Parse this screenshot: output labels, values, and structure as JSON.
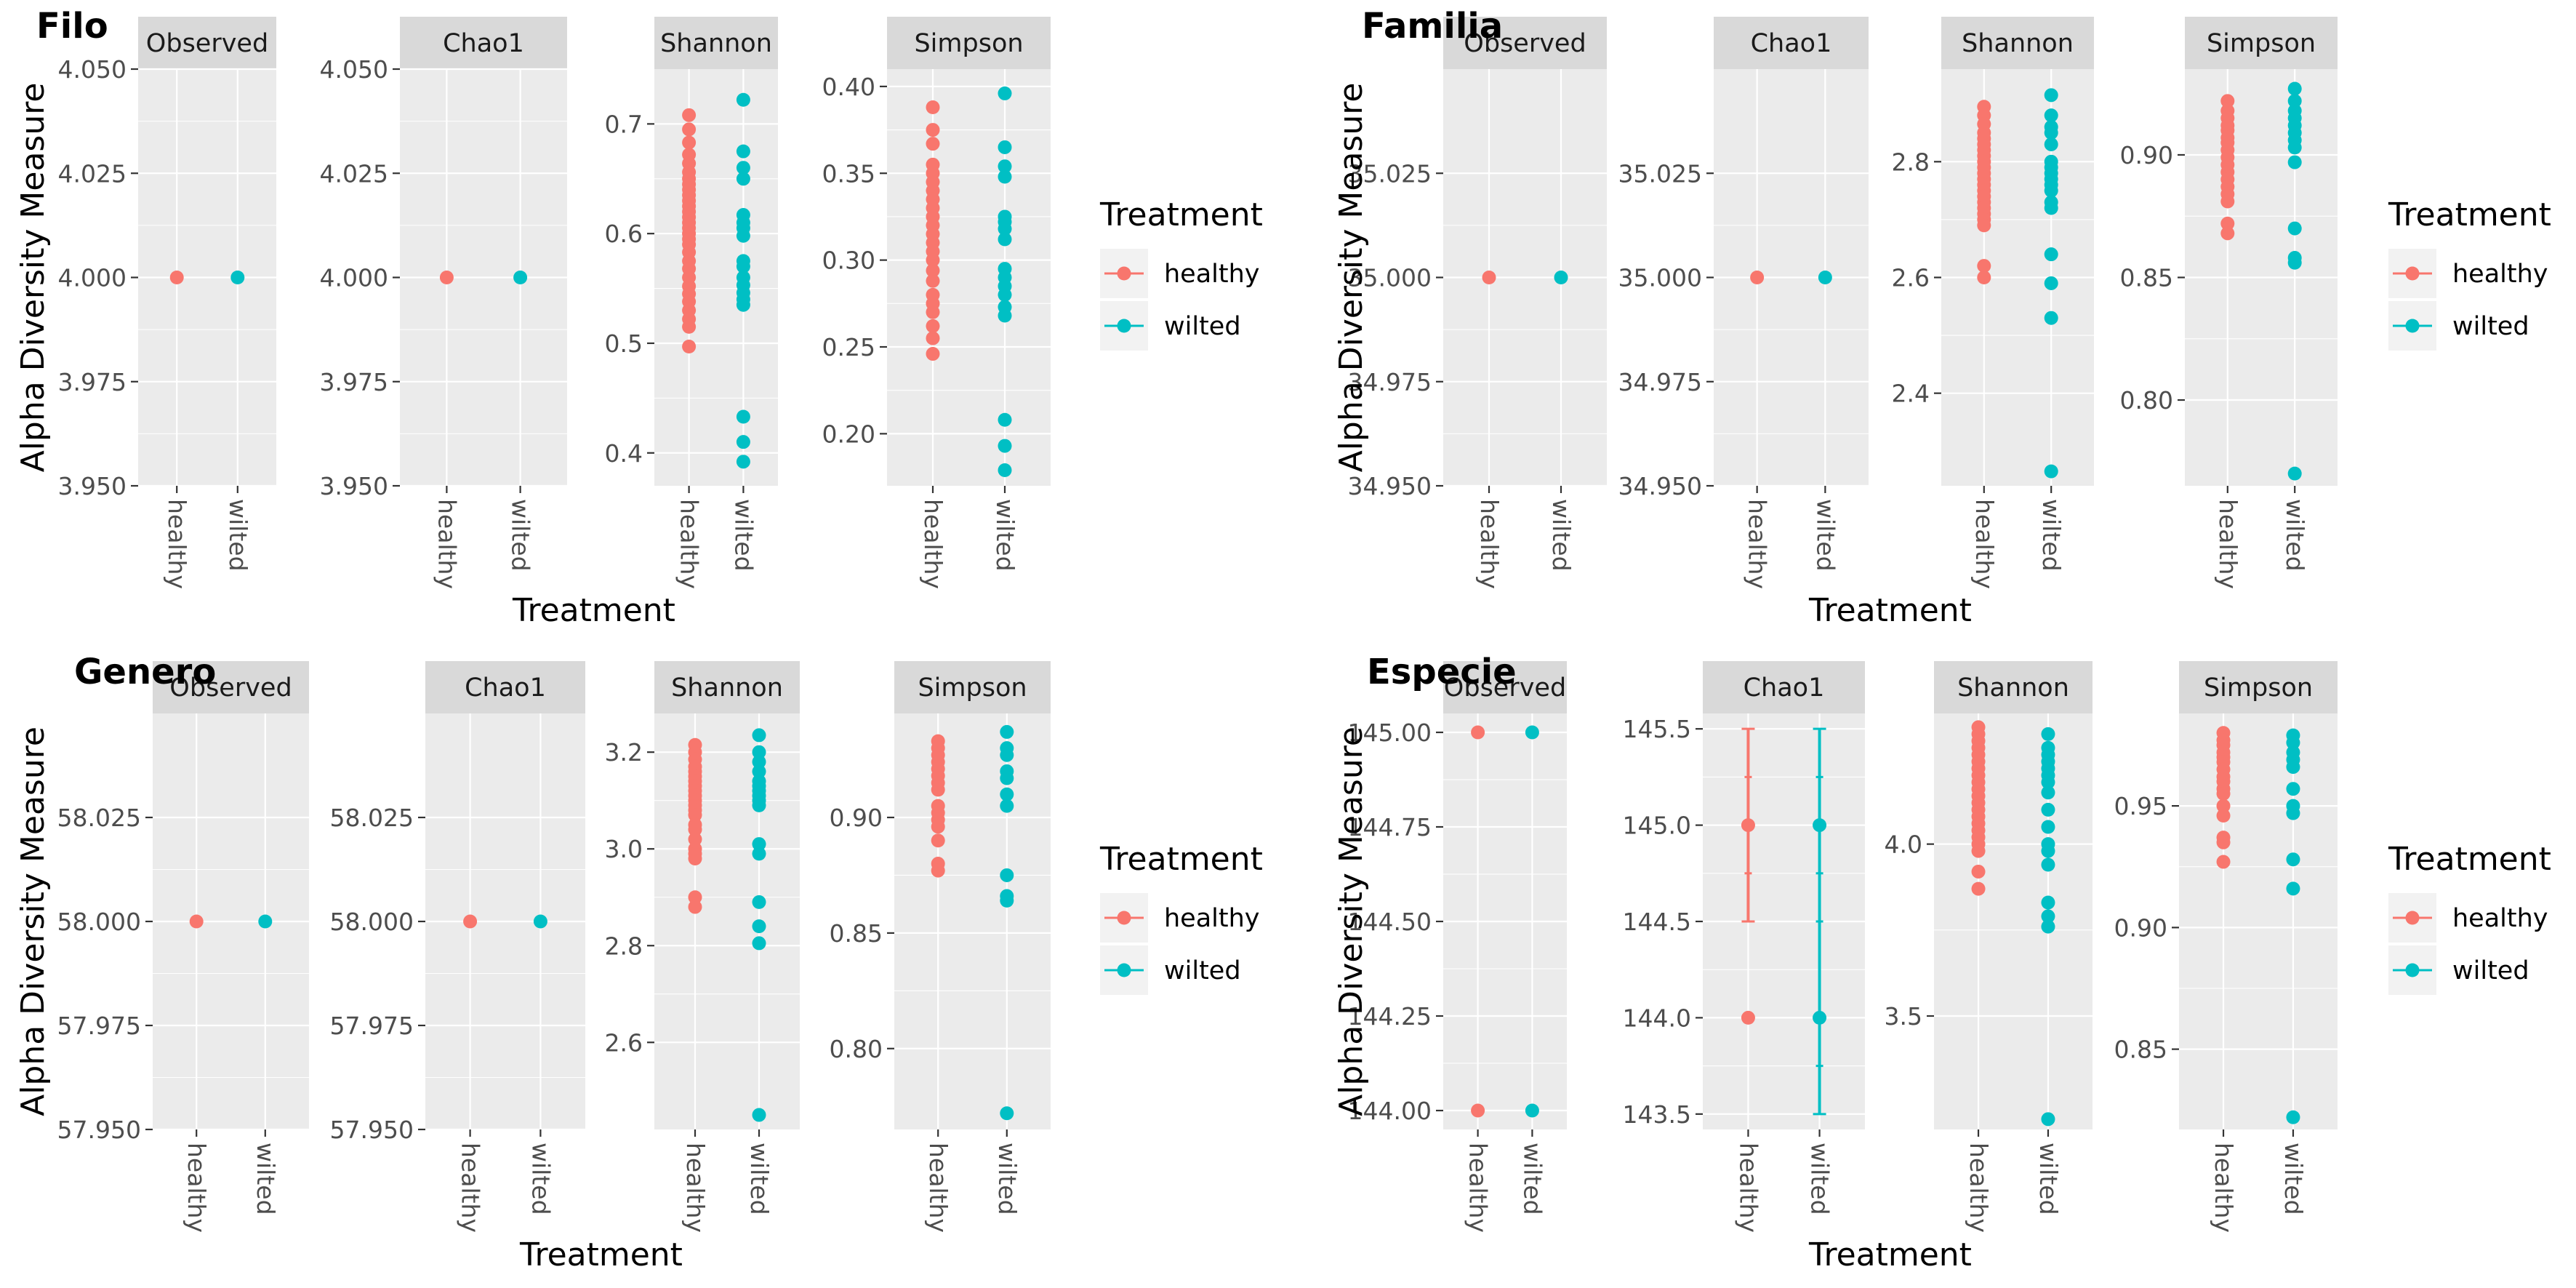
{
  "colors": {
    "healthy": "#F8766D",
    "wilted": "#00BFC4"
  },
  "chart_data": [
    {
      "type": "scatter",
      "title": "Filo",
      "xlabel": "Treatment",
      "ylabel": "Alpha Diversity Measure",
      "categories": [
        "healthy",
        "wilted"
      ],
      "legend": {
        "title": "Treatment",
        "entries": [
          "healthy",
          "wilted"
        ],
        "placement": "right"
      },
      "facets": [
        {
          "name": "Observed",
          "ylim": [
            3.95,
            4.05
          ],
          "yticks": [
            3.95,
            3.975,
            4.0,
            4.025,
            4.05
          ],
          "ytick_labels": [
            "3.950",
            "3.975",
            "4.000",
            "4.025",
            "4.050"
          ],
          "series": [
            {
              "name": "healthy",
              "values": [
                4
              ]
            },
            {
              "name": "wilted",
              "values": [
                4
              ]
            }
          ]
        },
        {
          "name": "Chao1",
          "ylim": [
            3.95,
            4.05
          ],
          "yticks": [
            3.95,
            3.975,
            4.0,
            4.025,
            4.05
          ],
          "ytick_labels": [
            "3.950",
            "3.975",
            "4.000",
            "4.025",
            "4.050"
          ],
          "series": [
            {
              "name": "healthy",
              "values": [
                4
              ]
            },
            {
              "name": "wilted",
              "values": [
                4
              ]
            }
          ]
        },
        {
          "name": "Shannon",
          "ylim": [
            0.37,
            0.75
          ],
          "yticks": [
            0.4,
            0.5,
            0.6,
            0.7
          ],
          "ytick_labels": [
            "0.4",
            "0.5",
            "0.6",
            "0.7"
          ],
          "series": [
            {
              "name": "healthy",
              "values": [
                0.708,
                0.695,
                0.683,
                0.672,
                0.664,
                0.656,
                0.65,
                0.645,
                0.64,
                0.635,
                0.63,
                0.625,
                0.62,
                0.615,
                0.61,
                0.605,
                0.6,
                0.595,
                0.59,
                0.583,
                0.575,
                0.568,
                0.56,
                0.552,
                0.545,
                0.538,
                0.53,
                0.522,
                0.515,
                0.497
              ]
            },
            {
              "name": "wilted",
              "values": [
                0.722,
                0.675,
                0.66,
                0.65,
                0.617,
                0.61,
                0.605,
                0.598,
                0.575,
                0.57,
                0.56,
                0.553,
                0.546,
                0.54,
                0.535,
                0.433,
                0.41,
                0.392
              ]
            }
          ]
        },
        {
          "name": "Simpson",
          "ylim": [
            0.17,
            0.41
          ],
          "yticks": [
            0.2,
            0.25,
            0.3,
            0.35,
            0.4
          ],
          "ytick_labels": [
            "0.20",
            "0.25",
            "0.30",
            "0.35",
            "0.40"
          ],
          "series": [
            {
              "name": "healthy",
              "values": [
                0.388,
                0.375,
                0.367,
                0.355,
                0.35,
                0.345,
                0.34,
                0.335,
                0.33,
                0.325,
                0.32,
                0.315,
                0.31,
                0.305,
                0.3,
                0.294,
                0.288,
                0.28,
                0.275,
                0.27,
                0.262,
                0.255,
                0.246
              ]
            },
            {
              "name": "wilted",
              "values": [
                0.396,
                0.365,
                0.354,
                0.348,
                0.325,
                0.322,
                0.318,
                0.312,
                0.295,
                0.29,
                0.285,
                0.28,
                0.273,
                0.268,
                0.208,
                0.193,
                0.179
              ]
            }
          ]
        }
      ]
    },
    {
      "type": "scatter",
      "title": "Familia",
      "xlabel": "Treatment",
      "ylabel": "Alpha Diversity Measure",
      "categories": [
        "healthy",
        "wilted"
      ],
      "legend": {
        "title": "Treatment",
        "entries": [
          "healthy",
          "wilted"
        ],
        "placement": "right"
      },
      "facets": [
        {
          "name": "Observed",
          "ylim": [
            34.95,
            35.05
          ],
          "yticks": [
            34.95,
            34.975,
            35.0,
            35.025
          ],
          "ytick_labels": [
            "34.950",
            "34.975",
            "35.000",
            "35.025"
          ],
          "series": [
            {
              "name": "healthy",
              "values": [
                35
              ]
            },
            {
              "name": "wilted",
              "values": [
                35
              ]
            }
          ]
        },
        {
          "name": "Chao1",
          "ylim": [
            34.95,
            35.05
          ],
          "yticks": [
            34.95,
            34.975,
            35.0,
            35.025
          ],
          "ytick_labels": [
            "34.950",
            "34.975",
            "35.000",
            "35.025"
          ],
          "series": [
            {
              "name": "healthy",
              "values": [
                35
              ]
            },
            {
              "name": "wilted",
              "values": [
                35
              ]
            }
          ]
        },
        {
          "name": "Shannon",
          "ylim": [
            2.24,
            2.96
          ],
          "yticks": [
            2.4,
            2.6,
            2.8
          ],
          "ytick_labels": [
            "2.4",
            "2.6",
            "2.8"
          ],
          "series": [
            {
              "name": "healthy",
              "values": [
                2.895,
                2.88,
                2.865,
                2.85,
                2.84,
                2.83,
                2.82,
                2.81,
                2.8,
                2.79,
                2.78,
                2.77,
                2.76,
                2.75,
                2.74,
                2.73,
                2.72,
                2.71,
                2.7,
                2.69,
                2.62,
                2.6
              ]
            },
            {
              "name": "wilted",
              "values": [
                2.915,
                2.88,
                2.86,
                2.85,
                2.83,
                2.8,
                2.79,
                2.78,
                2.77,
                2.76,
                2.75,
                2.73,
                2.72,
                2.64,
                2.59,
                2.53,
                2.265
              ]
            }
          ]
        },
        {
          "name": "Simpson",
          "ylim": [
            0.765,
            0.935
          ],
          "yticks": [
            0.8,
            0.85,
            0.9
          ],
          "ytick_labels": [
            "0.80",
            "0.85",
            "0.90"
          ],
          "series": [
            {
              "name": "healthy",
              "values": [
                0.922,
                0.918,
                0.915,
                0.912,
                0.91,
                0.907,
                0.905,
                0.902,
                0.899,
                0.896,
                0.893,
                0.89,
                0.887,
                0.884,
                0.881,
                0.872,
                0.868
              ]
            },
            {
              "name": "wilted",
              "values": [
                0.927,
                0.922,
                0.918,
                0.915,
                0.912,
                0.909,
                0.906,
                0.903,
                0.897,
                0.87,
                0.858,
                0.856,
                0.77
              ]
            }
          ]
        }
      ]
    },
    {
      "type": "scatter",
      "title": "Genero",
      "xlabel": "Treatment",
      "ylabel": "Alpha Diversity Measure",
      "categories": [
        "healthy",
        "wilted"
      ],
      "legend": {
        "title": "Treatment",
        "entries": [
          "healthy",
          "wilted"
        ],
        "placement": "right"
      },
      "facets": [
        {
          "name": "Observed",
          "ylim": [
            57.95,
            58.05
          ],
          "yticks": [
            57.95,
            57.975,
            58.0,
            58.025
          ],
          "ytick_labels": [
            "57.950",
            "57.975",
            "58.000",
            "58.025"
          ],
          "series": [
            {
              "name": "healthy",
              "values": [
                58
              ]
            },
            {
              "name": "wilted",
              "values": [
                58
              ]
            }
          ]
        },
        {
          "name": "Chao1",
          "ylim": [
            57.95,
            58.05
          ],
          "yticks": [
            57.95,
            57.975,
            58.0,
            58.025
          ],
          "ytick_labels": [
            "57.950",
            "57.975",
            "58.000",
            "58.025"
          ],
          "series": [
            {
              "name": "healthy",
              "values": [
                58
              ]
            },
            {
              "name": "wilted",
              "values": [
                58
              ]
            }
          ]
        },
        {
          "name": "Shannon",
          "ylim": [
            2.42,
            3.28
          ],
          "yticks": [
            2.6,
            2.8,
            3.0,
            3.2
          ],
          "ytick_labels": [
            "2.6",
            "2.8",
            "3.0",
            "3.2"
          ],
          "series": [
            {
              "name": "healthy",
              "values": [
                3.215,
                3.2,
                3.185,
                3.17,
                3.16,
                3.15,
                3.14,
                3.13,
                3.12,
                3.11,
                3.1,
                3.09,
                3.08,
                3.07,
                3.05,
                3.04,
                3.02,
                3.0,
                2.99,
                2.98,
                2.9,
                2.88
              ]
            },
            {
              "name": "wilted",
              "values": [
                3.235,
                3.2,
                3.18,
                3.16,
                3.14,
                3.13,
                3.12,
                3.11,
                3.1,
                3.09,
                3.01,
                2.99,
                2.89,
                2.84,
                2.805,
                2.45
              ]
            }
          ]
        },
        {
          "name": "Simpson",
          "ylim": [
            0.765,
            0.945
          ],
          "yticks": [
            0.8,
            0.85,
            0.9
          ],
          "ytick_labels": [
            "0.80",
            "0.85",
            "0.90"
          ],
          "series": [
            {
              "name": "healthy",
              "values": [
                0.933,
                0.93,
                0.927,
                0.924,
                0.921,
                0.918,
                0.915,
                0.912,
                0.905,
                0.902,
                0.899,
                0.896,
                0.89,
                0.88,
                0.877
              ]
            },
            {
              "name": "wilted",
              "values": [
                0.937,
                0.93,
                0.927,
                0.92,
                0.917,
                0.91,
                0.905,
                0.875,
                0.866,
                0.864,
                0.772
              ]
            }
          ]
        }
      ]
    },
    {
      "type": "scatter",
      "title": "Especie",
      "xlabel": "Treatment",
      "ylabel": "Alpha Diversity Measure",
      "categories": [
        "healthy",
        "wilted"
      ],
      "legend": {
        "title": "Treatment",
        "entries": [
          "healthy",
          "wilted"
        ],
        "placement": "right"
      },
      "facets": [
        {
          "name": "Observed",
          "ylim": [
            143.95,
            145.05
          ],
          "yticks": [
            144.0,
            144.25,
            144.5,
            144.75,
            145.0
          ],
          "ytick_labels": [
            "144.00",
            "144.25",
            "144.50",
            "144.75",
            "145.00"
          ],
          "series": [
            {
              "name": "healthy",
              "values": [
                145,
                144
              ]
            },
            {
              "name": "wilted",
              "values": [
                145,
                144
              ]
            }
          ]
        },
        {
          "name": "Chao1",
          "ylim": [
            143.42,
            145.58
          ],
          "yticks": [
            143.5,
            144.0,
            144.5,
            145.0,
            145.5
          ],
          "ytick_labels": [
            "143.5",
            "144.0",
            "144.5",
            "145.0",
            "145.5"
          ],
          "error_bars": [
            {
              "name": "healthy",
              "low": 144.5,
              "high": 145.5,
              "ticks": [
                145.25,
                144.75
              ]
            },
            {
              "name": "wilted",
              "low": 143.5,
              "high": 145.5,
              "ticks": [
                145.25,
                144.75,
                144.5,
                143.75
              ]
            }
          ],
          "series": [
            {
              "name": "healthy",
              "values": [
                145,
                144
              ]
            },
            {
              "name": "wilted",
              "values": [
                145,
                144
              ]
            }
          ]
        },
        {
          "name": "Shannon",
          "ylim": [
            3.17,
            4.38
          ],
          "yticks": [
            3.5,
            4.0
          ],
          "ytick_labels": [
            "3.5",
            "4.0"
          ],
          "series": [
            {
              "name": "healthy",
              "values": [
                4.34,
                4.32,
                4.3,
                4.28,
                4.26,
                4.24,
                4.22,
                4.2,
                4.18,
                4.16,
                4.14,
                4.12,
                4.1,
                4.08,
                4.06,
                4.04,
                4.02,
                4.0,
                3.98,
                3.92,
                3.87
              ]
            },
            {
              "name": "wilted",
              "values": [
                4.32,
                4.28,
                4.26,
                4.24,
                4.22,
                4.2,
                4.18,
                4.15,
                4.1,
                4.05,
                4.0,
                3.98,
                3.94,
                3.83,
                3.79,
                3.76,
                3.2
              ]
            }
          ]
        },
        {
          "name": "Simpson",
          "ylim": [
            0.817,
            0.988
          ],
          "yticks": [
            0.85,
            0.9,
            0.95
          ],
          "ytick_labels": [
            "0.85",
            "0.90",
            "0.95"
          ],
          "series": [
            {
              "name": "healthy",
              "values": [
                0.98,
                0.977,
                0.975,
                0.972,
                0.97,
                0.968,
                0.965,
                0.962,
                0.96,
                0.957,
                0.955,
                0.95,
                0.946,
                0.937,
                0.935,
                0.927
              ]
            },
            {
              "name": "wilted",
              "values": [
                0.979,
                0.976,
                0.972,
                0.969,
                0.966,
                0.957,
                0.95,
                0.947,
                0.928,
                0.916,
                0.822
              ]
            }
          ]
        }
      ]
    }
  ]
}
